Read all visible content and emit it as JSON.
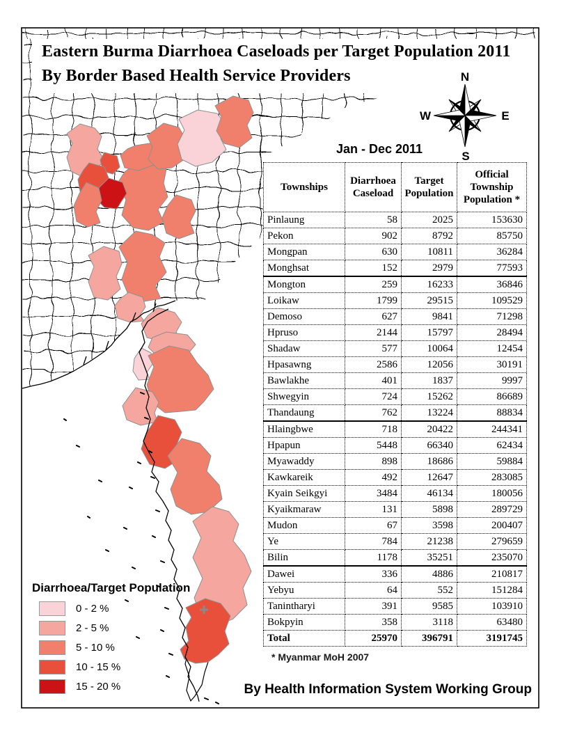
{
  "page": {
    "title_line1": "Eastern Burma Diarrhoea Caseloads per Target Population 2011",
    "title_line2": "By Border Based Health Service Providers",
    "period_label": "Jan - Dec 2011",
    "footnote": "* Myanmar MoH 2007",
    "credit": "By Health Information System Working Group"
  },
  "compass": {
    "n": "N",
    "e": "E",
    "s": "S",
    "w": "W"
  },
  "table": {
    "columns": [
      "Townships",
      "Diarrhoea Caseload",
      "Target Population",
      "Official Township Population *"
    ],
    "rows": [
      {
        "name": "Pinlaung",
        "caseload": "58",
        "target": "2025",
        "official": "153630",
        "group_end": false
      },
      {
        "name": "Pekon",
        "caseload": "902",
        "target": "8792",
        "official": "85750",
        "group_end": false
      },
      {
        "name": "Mongpan",
        "caseload": "630",
        "target": "10811",
        "official": "36284",
        "group_end": false
      },
      {
        "name": "Monghsat",
        "caseload": "152",
        "target": "2979",
        "official": "77593",
        "group_end": true
      },
      {
        "name": "Mongton",
        "caseload": "259",
        "target": "16233",
        "official": "36846",
        "group_end": false
      },
      {
        "name": "Loikaw",
        "caseload": "1799",
        "target": "29515",
        "official": "109529",
        "group_end": false
      },
      {
        "name": "Demoso",
        "caseload": "627",
        "target": "9841",
        "official": "71298",
        "group_end": false
      },
      {
        "name": "Hpruso",
        "caseload": "2144",
        "target": "15797",
        "official": "28494",
        "group_end": false
      },
      {
        "name": "Shadaw",
        "caseload": "577",
        "target": "10064",
        "official": "12454",
        "group_end": false
      },
      {
        "name": "Hpasawng",
        "caseload": "2586",
        "target": "12056",
        "official": "30191",
        "group_end": false
      },
      {
        "name": "Bawlakhe",
        "caseload": "401",
        "target": "1837",
        "official": "9997",
        "group_end": false
      },
      {
        "name": "Shwegyin",
        "caseload": "724",
        "target": "15262",
        "official": "86689",
        "group_end": false
      },
      {
        "name": "Thandaung",
        "caseload": "762",
        "target": "13224",
        "official": "88834",
        "group_end": true
      },
      {
        "name": "Hlaingbwe",
        "caseload": "718",
        "target": "20422",
        "official": "244341",
        "group_end": false
      },
      {
        "name": "Hpapun",
        "caseload": "5448",
        "target": "66340",
        "official": "62434",
        "group_end": false
      },
      {
        "name": "Myawaddy",
        "caseload": "898",
        "target": "18686",
        "official": "59884",
        "group_end": false
      },
      {
        "name": "Kawkareik",
        "caseload": "492",
        "target": "12647",
        "official": "283085",
        "group_end": false
      },
      {
        "name": "Kyain Seikgyi",
        "caseload": "3484",
        "target": "46134",
        "official": "180056",
        "group_end": false
      },
      {
        "name": "Kyaikmaraw",
        "caseload": "131",
        "target": "5898",
        "official": "289729",
        "group_end": false
      },
      {
        "name": "Mudon",
        "caseload": "67",
        "target": "3598",
        "official": "200407",
        "group_end": false
      },
      {
        "name": "Ye",
        "caseload": "784",
        "target": "21238",
        "official": "279659",
        "group_end": false
      },
      {
        "name": "Bilin",
        "caseload": "1178",
        "target": "35251",
        "official": "235070",
        "group_end": true
      },
      {
        "name": "Dawei",
        "caseload": "336",
        "target": "4886",
        "official": "210817",
        "group_end": false
      },
      {
        "name": "Yebyu",
        "caseload": "64",
        "target": "552",
        "official": "151284",
        "group_end": false
      },
      {
        "name": "Tanintharyi",
        "caseload": "391",
        "target": "9585",
        "official": "103910",
        "group_end": false
      },
      {
        "name": "Bokpyin",
        "caseload": "358",
        "target": "3118",
        "official": "63480",
        "group_end": false
      }
    ],
    "total": {
      "name": "Total",
      "caseload": "25970",
      "target": "396791",
      "official": "3191745"
    }
  },
  "legend": {
    "title": "Diarrhoea/Target Population",
    "classes": [
      {
        "label": "0 - 2 %",
        "color": "#f9d3d7"
      },
      {
        "label": "2 - 5 %",
        "color": "#f5a79f"
      },
      {
        "label": "5 - 10 %",
        "color": "#f0806c"
      },
      {
        "label": "10 - 15 %",
        "color": "#e8503c"
      },
      {
        "label": "15 - 20 %",
        "color": "#cd1216"
      }
    ]
  }
}
